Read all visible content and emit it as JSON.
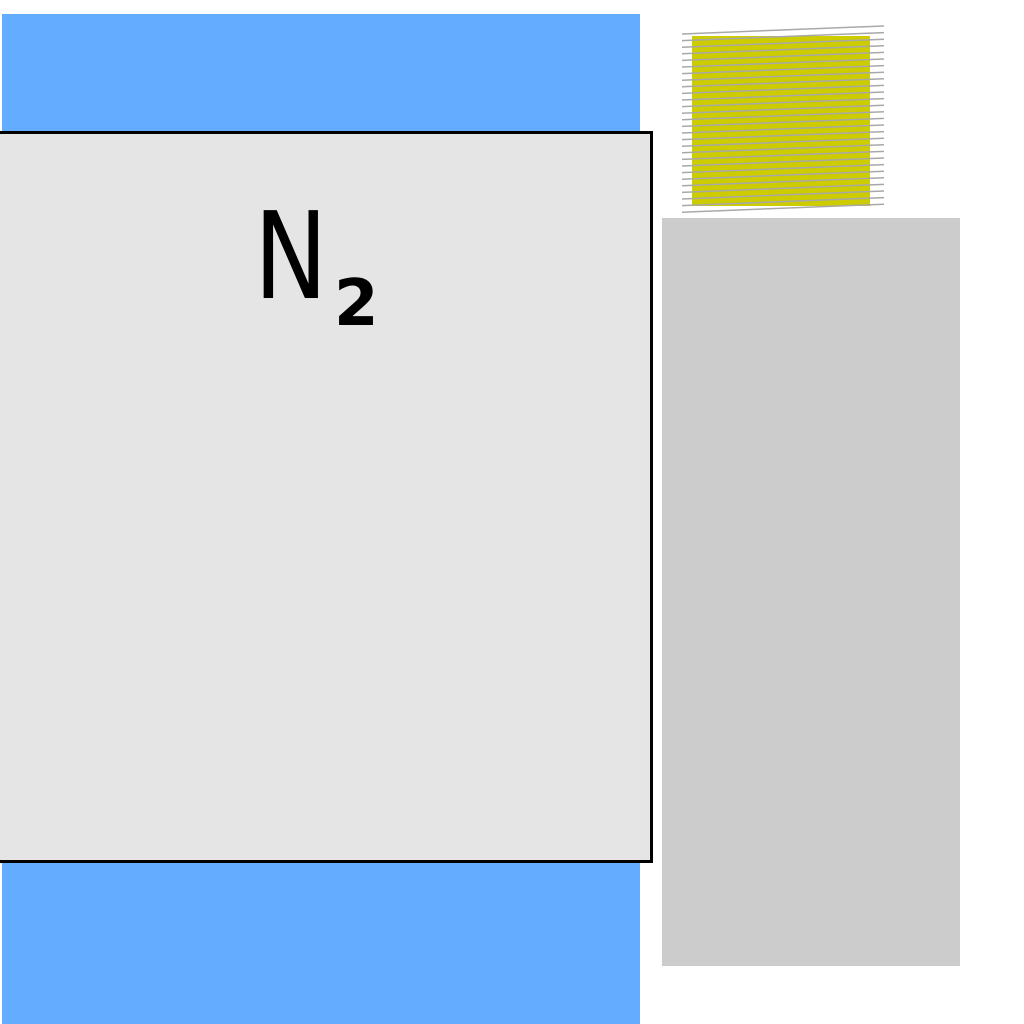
{
  "diagram": {
    "gas_formula_main": "N",
    "gas_formula_subscript": "2"
  },
  "colors": {
    "blue_band": "#63acff",
    "gas_box_fill": "#e5e5e5",
    "gas_box_border": "#000000",
    "gray_panel": "#cccccc",
    "yellow_square": "#cccc00",
    "hatch_lines": "#a8a8a8"
  },
  "icons": {
    "hatched_square": "hatched-yellow-square-icon"
  }
}
